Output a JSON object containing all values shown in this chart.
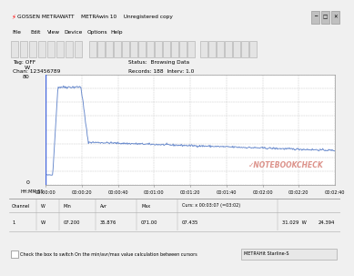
{
  "title": "GOSSEN METRAWATT    METRAwin 10    Unregistered copy",
  "status_text": "Status:  Browsing Data",
  "records_text": "Records: 188  Interv: 1.0",
  "tag_text": "Tag: OFF",
  "chan_text": "Chan: 123456789",
  "y_max_label": "80",
  "y_unit": "W",
  "y_min_label": "0",
  "x_labels": [
    "00:00:00",
    "00:00:20",
    "00:00:40",
    "00:01:00",
    "00:01:20",
    "00:01:40",
    "00:02:00",
    "00:02:20",
    "00:02:40"
  ],
  "x_label_header": "HH:MM:SS",
  "peak_watts": 71.0,
  "steady_watts": 31.0,
  "baseline_watts": 7.2,
  "bg_color": "#f0f0f0",
  "plot_bg_color": "#ffffff",
  "line_color": "#6688cc",
  "grid_color": "#c8c8c8",
  "table_header_cols": [
    "Channel",
    "W",
    "Min",
    "Avr",
    "Max",
    "Curs: x 00:03:07 (=03:02)",
    "",
    ""
  ],
  "table_data_cols": [
    "1",
    "W",
    "07.200",
    "35.876",
    "071.00",
    "07.435",
    "31.029  W",
    "24.394"
  ],
  "cursor_text": "Curs: x 00:03:07 (=03:02)",
  "bottom_text": "Check the box to switch On the min/avr/max value calculation between cursors",
  "bottom_right_text": "METRAHit Starline-S",
  "titlebar_color": "#0054a6",
  "titlebar_text_color": "#ffffff",
  "menu_items": [
    "File",
    "Edit",
    "View",
    "Device",
    "Options",
    "Help"
  ],
  "notebookcheck_color": "#c0392b"
}
